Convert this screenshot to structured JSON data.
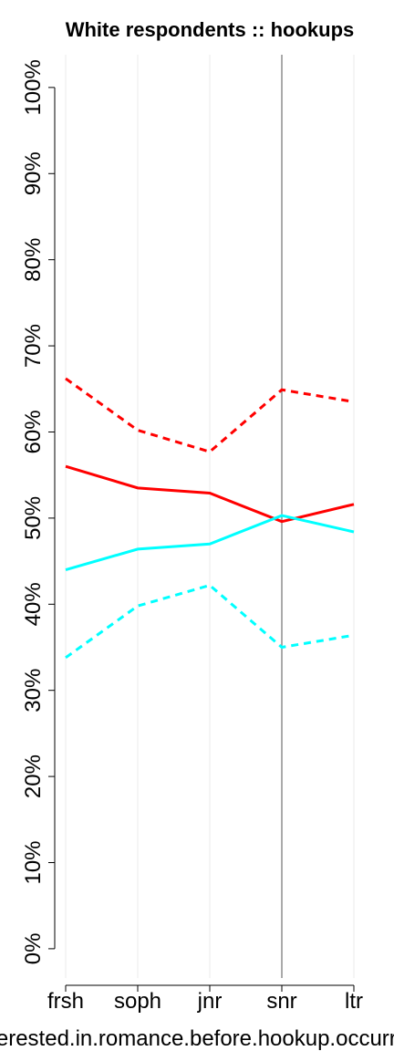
{
  "chart_data": {
    "type": "line",
    "title": "White respondents :: hookups",
    "x_label": "interested.in.romance.before.hookup.occurred",
    "categories": [
      "frsh",
      "soph",
      "jnr",
      "snr",
      "ltr"
    ],
    "series": [
      {
        "color": "#ff0000",
        "dashed": false,
        "values": [
          56.0,
          53.5,
          52.9,
          49.6,
          51.6
        ]
      },
      {
        "color": "#ff0000",
        "dashed": true,
        "values": [
          66.2,
          60.2,
          57.7,
          64.9,
          63.5
        ]
      },
      {
        "color": "#00ffff",
        "dashed": false,
        "values": [
          44.0,
          46.4,
          47.0,
          50.3,
          48.4
        ]
      },
      {
        "color": "#00ffff",
        "dashed": true,
        "values": [
          33.8,
          39.8,
          42.2,
          35.0,
          36.4
        ]
      }
    ],
    "ylim": [
      -3.4,
      103.8
    ],
    "yticks": [
      {
        "value": 0,
        "label": "0%"
      },
      {
        "value": 10,
        "label": "10%"
      },
      {
        "value": 20,
        "label": "20%"
      },
      {
        "value": 30,
        "label": "30%"
      },
      {
        "value": 40,
        "label": "40%"
      },
      {
        "value": 50,
        "label": "50%"
      },
      {
        "value": 60,
        "label": "60%"
      },
      {
        "value": 70,
        "label": "70%"
      },
      {
        "value": 80,
        "label": "80%"
      },
      {
        "value": 90,
        "label": "90%"
      },
      {
        "value": 100,
        "label": "100%"
      }
    ],
    "grid": true,
    "vline_category": "snr"
  }
}
